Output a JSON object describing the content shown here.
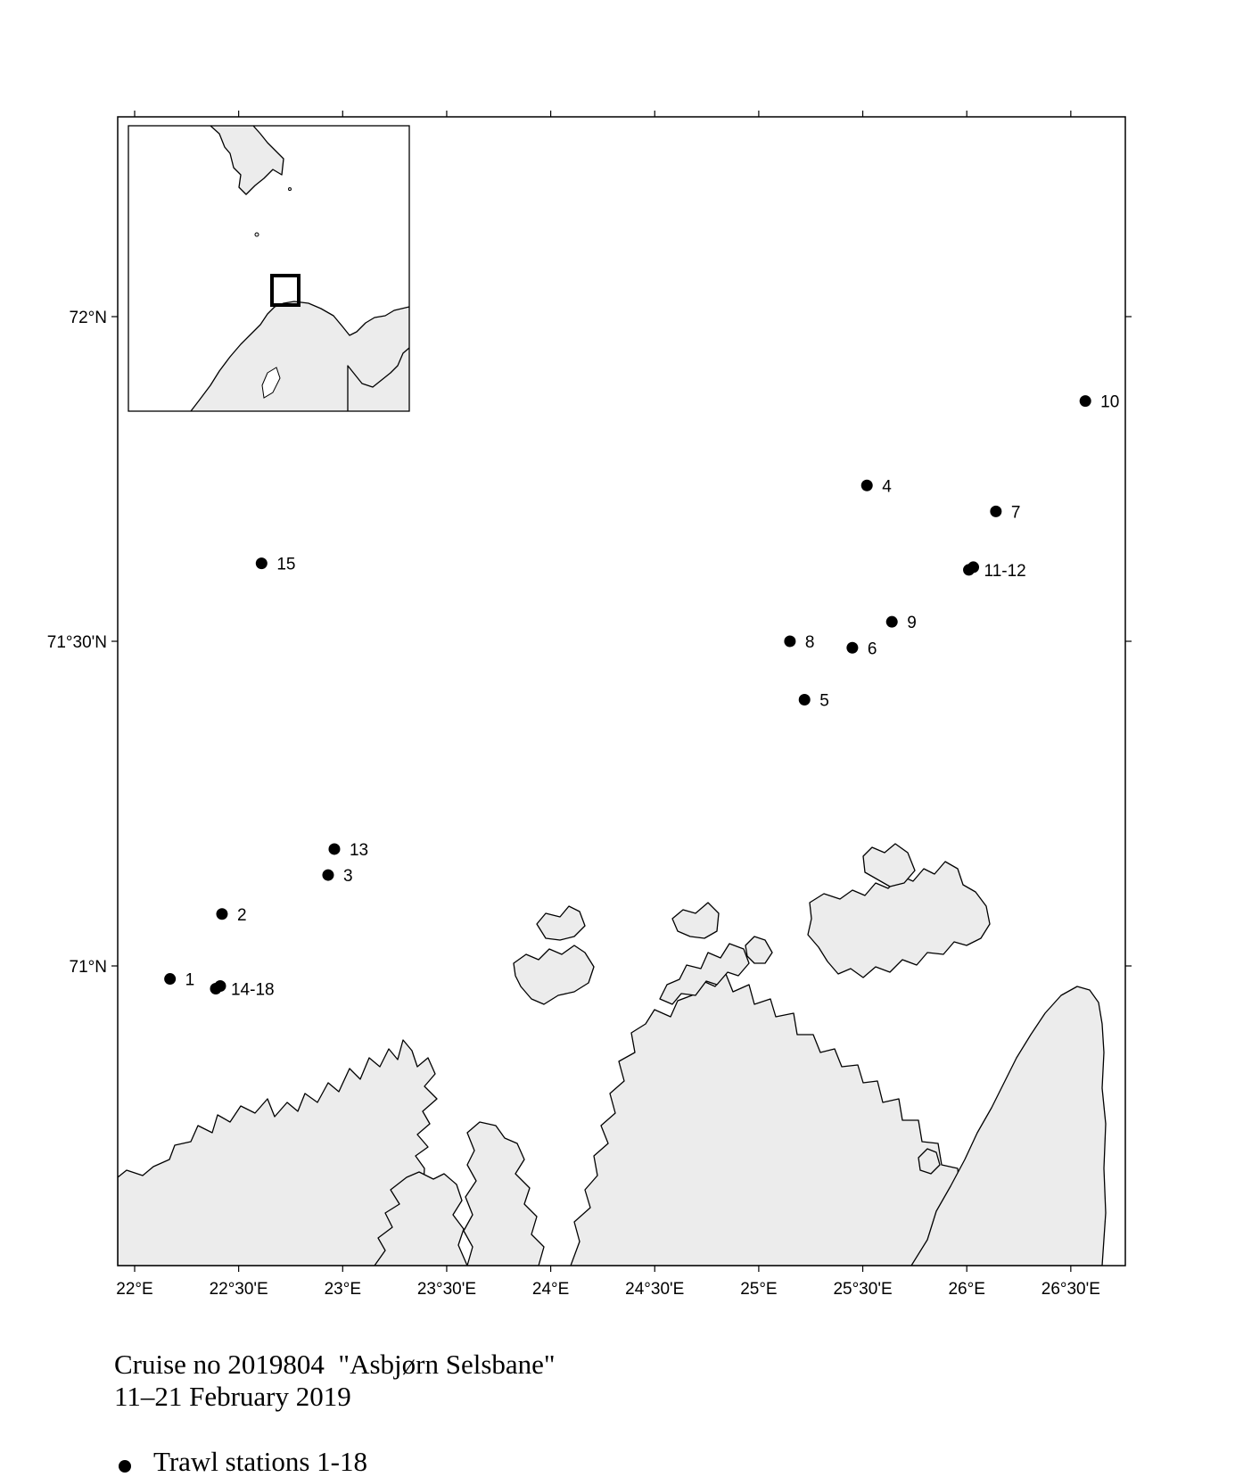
{
  "map": {
    "lon_ticks": [
      "22°E",
      "22°30'E",
      "23°E",
      "23°30'E",
      "24°E",
      "24°30'E",
      "25°E",
      "25°30'E",
      "26°E",
      "26°30'E"
    ],
    "lat_ticks": [
      "72°N",
      "71°30'N",
      "71°N"
    ],
    "stations": [
      {
        "label": "1",
        "lon": 22.17,
        "lat": 70.98
      },
      {
        "label": "14-18",
        "lon": 22.39,
        "lat": 70.965
      },
      {
        "label": "2",
        "lon": 22.42,
        "lat": 71.08
      },
      {
        "label": "3",
        "lon": 22.93,
        "lat": 71.14
      },
      {
        "label": "13",
        "lon": 22.96,
        "lat": 71.18
      },
      {
        "label": "15",
        "lon": 22.61,
        "lat": 71.62
      },
      {
        "label": "8",
        "lon": 25.15,
        "lat": 71.5
      },
      {
        "label": "5",
        "lon": 25.22,
        "lat": 71.41
      },
      {
        "label": "6",
        "lon": 25.45,
        "lat": 71.49
      },
      {
        "label": "9",
        "lon": 25.64,
        "lat": 71.53
      },
      {
        "label": "4",
        "lon": 25.52,
        "lat": 71.74
      },
      {
        "label": "7",
        "lon": 26.14,
        "lat": 71.7
      },
      {
        "label": "11-12",
        "lon": 26.01,
        "lat": 71.61
      },
      {
        "label": "10",
        "lon": 26.57,
        "lat": 71.87
      }
    ]
  },
  "caption": {
    "line1": "Cruise no 2019804  \"Asbjørn Selsbane\"",
    "line2": "11–21 February 2019"
  },
  "legend": {
    "label": "Trawl stations 1-18",
    "marker": "filled-circle"
  }
}
